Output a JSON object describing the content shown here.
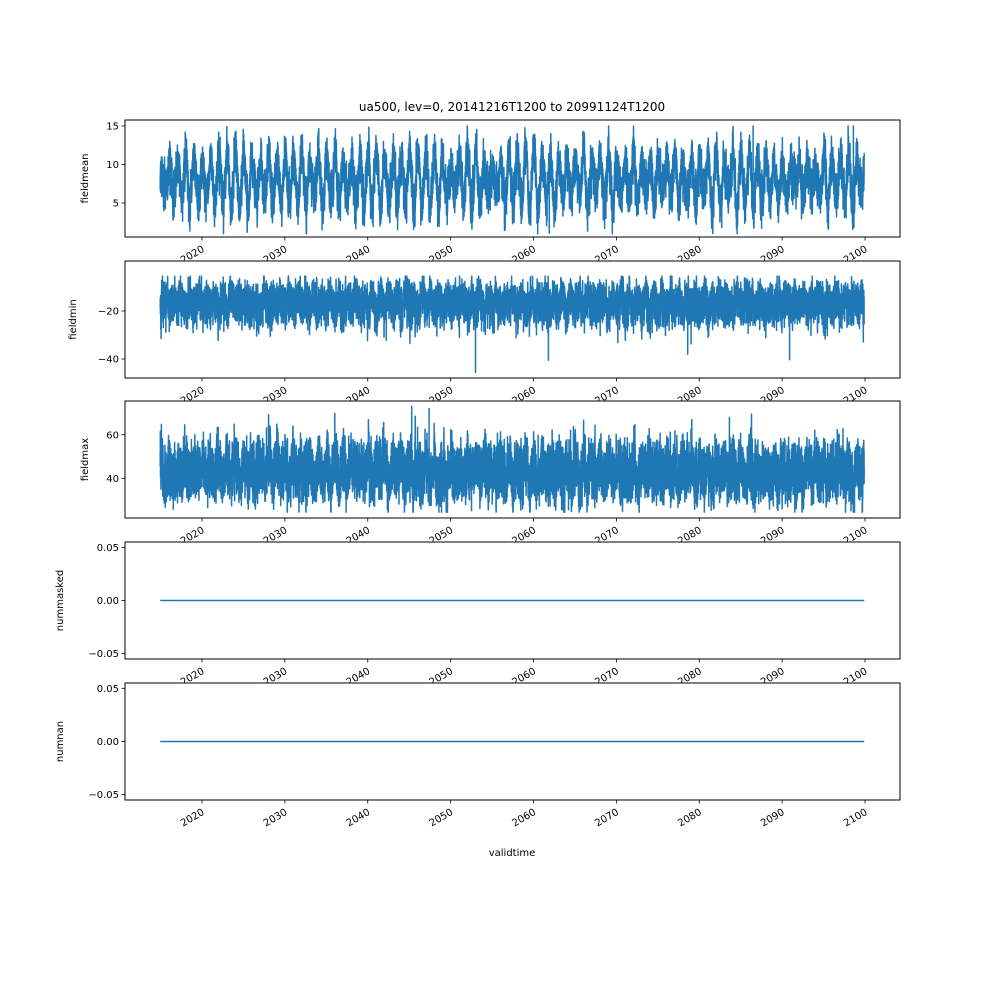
{
  "chart_data": {
    "type": "line",
    "title": "ua500, lev=0, 20141216T1200 to 20991124T1200",
    "xlabel": "validtime",
    "x_range": [
      "2014-12-16T12:00",
      "2099-11-24T12:00"
    ],
    "xlim": [
      2010.71,
      2104.22
    ],
    "xticks": [
      2020,
      2030,
      2040,
      2050,
      2060,
      2070,
      2080,
      2090,
      2100
    ],
    "xtick_labels": [
      "2020",
      "2030",
      "2040",
      "2050",
      "2060",
      "2070",
      "2080",
      "2090",
      "2100"
    ],
    "grid": false,
    "color": "#1f77b4",
    "panels": [
      {
        "ylabel": "fieldmean",
        "ylim": [
          0.58,
          15.78
        ],
        "yticks": [
          5,
          10,
          15
        ],
        "ytick_labels": [
          "5",
          "10",
          "15"
        ],
        "summary": {
          "mean": 8,
          "seasonal_amplitude": 2.6,
          "noise_std": 1.3,
          "min": 1.0,
          "max": 15.0
        },
        "extremes": [
          {
            "x": 2022.6,
            "y": 1.0
          },
          {
            "x": 2061.9,
            "y": 1.1
          },
          {
            "x": 2086.5,
            "y": 15.0
          },
          {
            "x": 2098.6,
            "y": 15.0
          }
        ]
      },
      {
        "ylabel": "fieldmin",
        "ylim": [
          -47.9,
          0.8
        ],
        "yticks": [
          -40,
          -20
        ],
        "ytick_labels": [
          "−40",
          "−20"
        ],
        "summary": {
          "mean": -16,
          "seasonal_amplitude": 2.0,
          "noise_std": 3.3,
          "min": -45.6,
          "max": -5.5
        },
        "extremes": [
          {
            "x": 2053.0,
            "y": -45.6
          },
          {
            "x": 2061.8,
            "y": -40.5
          },
          {
            "x": 2090.9,
            "y": -40.3
          },
          {
            "x": 2078.6,
            "y": -38.0
          }
        ]
      },
      {
        "ylabel": "fieldmax",
        "ylim": [
          21.8,
          75.5
        ],
        "yticks": [
          40,
          60
        ],
        "ytick_labels": [
          "40",
          "60"
        ],
        "summary": {
          "mean": 42,
          "seasonal_amplitude": 3.5,
          "noise_std": 5.2,
          "min": 24.5,
          "max": 73.0
        },
        "extremes": [
          {
            "x": 2045.3,
            "y": 73.0
          },
          {
            "x": 2047.4,
            "y": 72.0
          },
          {
            "x": 2086.3,
            "y": 69.5
          },
          {
            "x": 2048.9,
            "y": 24.5
          }
        ]
      },
      {
        "ylabel": "nummasked",
        "ylim": [
          -0.055,
          0.055
        ],
        "yticks": [
          -0.05,
          0.0,
          0.05
        ],
        "ytick_labels": [
          "−0.05",
          "0.00",
          "0.05"
        ],
        "summary": {
          "constant": 0.0
        }
      },
      {
        "ylabel": "numnan",
        "ylim": [
          -0.055,
          0.055
        ],
        "yticks": [
          -0.05,
          0.0,
          0.05
        ],
        "ytick_labels": [
          "−0.05",
          "0.00",
          "0.05"
        ],
        "summary": {
          "constant": 0.0
        }
      }
    ]
  }
}
